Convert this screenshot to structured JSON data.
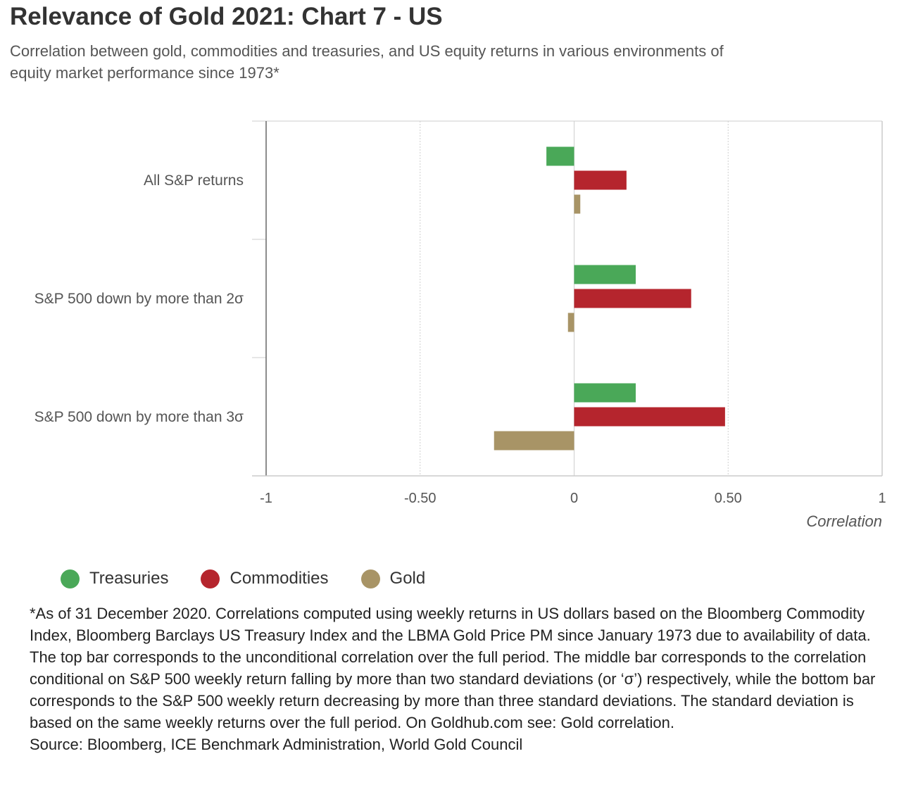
{
  "title": "Relevance of Gold 2021: Chart 7 - US",
  "subtitle": "Correlation between gold, commodities and treasuries, and US equity returns in various environments of equity market performance since 1973*",
  "chart_data": {
    "type": "bar",
    "orientation": "horizontal",
    "categories": [
      "All S&P returns",
      "S&P 500 down by more than 2σ",
      "S&P 500 down by more than 3σ"
    ],
    "series": [
      {
        "name": "Treasuries",
        "color": "#4aa858",
        "values": [
          -0.09,
          0.2,
          0.2
        ]
      },
      {
        "name": "Commodities",
        "color": "#b5252d",
        "values": [
          0.17,
          0.38,
          0.49
        ]
      },
      {
        "name": "Gold",
        "color": "#a89466",
        "values": [
          0.02,
          -0.02,
          -0.26
        ]
      }
    ],
    "xlim": [
      -1,
      1
    ],
    "xticks": [
      -1,
      -0.5,
      0,
      0.5,
      1
    ],
    "xtick_labels": [
      "-1",
      "-0.50",
      "0",
      "0.50",
      "1"
    ],
    "xlabel": "Correlation",
    "ylabel": "",
    "grid": true,
    "legend_position": "bottom-left"
  },
  "legend": [
    {
      "label": "Treasuries",
      "color": "#4aa858"
    },
    {
      "label": "Commodities",
      "color": "#b5252d"
    },
    {
      "label": "Gold",
      "color": "#a89466"
    }
  ],
  "footnote": {
    "text": "*As of 31 December 2020. Correlations computed using weekly returns in US dollars based on the Bloomberg Commodity Index, Bloomberg Barclays US Treasury Index and the LBMA Gold Price PM since January 1973 due to availability of data. The top bar corresponds to the unconditional correlation over the full period. The middle bar corresponds to the correlation conditional on S&P 500 weekly return falling by more than two standard deviations (or ‘σ’) respectively, while the bottom bar corresponds to the S&P 500 weekly return decreasing by more than three standard deviations. The standard deviation is based on the same weekly returns over the full period. On Goldhub.com see: Gold correlation.",
    "source": "Source: Bloomberg, ICE Benchmark Administration, World Gold Council"
  }
}
